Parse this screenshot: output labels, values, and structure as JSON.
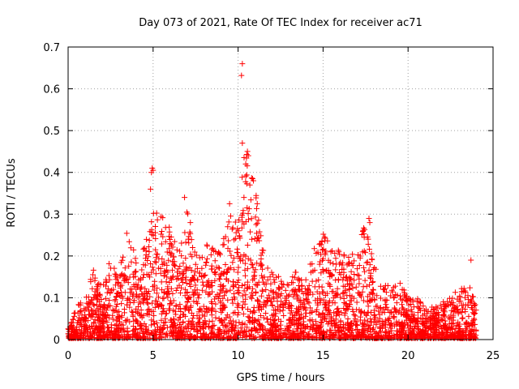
{
  "chart_data": {
    "type": "scatter",
    "title": "Day 073 of 2021, Rate Of TEC Index for receiver ac71",
    "xlabel": "GPS time / hours",
    "ylabel": "ROTI / TECUs",
    "xlim": [
      0,
      25
    ],
    "ylim": [
      0,
      0.7
    ],
    "xticks": [
      0,
      5,
      10,
      15,
      20,
      25
    ],
    "yticks": [
      0,
      0.1,
      0.2,
      0.3,
      0.4,
      0.5,
      0.6,
      0.7
    ],
    "x_tick_labels": [
      "0",
      "5",
      "10",
      "15",
      "20",
      "25"
    ],
    "y_tick_labels": [
      "0",
      "0.1",
      "0.2",
      "0.3",
      "0.4",
      "0.5",
      "0.6",
      "0.7"
    ],
    "grid": true,
    "legend": "none",
    "marker": "+",
    "color": "#ff0000",
    "envelope": {
      "x": [
        0,
        0.5,
        1,
        1.5,
        2,
        2.5,
        3,
        3.5,
        4,
        4.5,
        4.8,
        5,
        5.5,
        6,
        6.5,
        7,
        7.5,
        8,
        8.5,
        9,
        9.5,
        10,
        10.3,
        10.5,
        11,
        11.5,
        12,
        12.5,
        13,
        13.5,
        14,
        14.5,
        15,
        15.5,
        16,
        16.5,
        17,
        17.5,
        18,
        18.5,
        19,
        19.5,
        20,
        20.5,
        21,
        21.5,
        22,
        22.5,
        23,
        23.5,
        24
      ],
      "y": [
        0.03,
        0.08,
        0.1,
        0.18,
        0.12,
        0.2,
        0.17,
        0.27,
        0.2,
        0.22,
        0.28,
        0.32,
        0.3,
        0.27,
        0.22,
        0.34,
        0.2,
        0.24,
        0.22,
        0.22,
        0.3,
        0.3,
        0.47,
        0.45,
        0.38,
        0.22,
        0.17,
        0.15,
        0.14,
        0.17,
        0.16,
        0.22,
        0.26,
        0.22,
        0.22,
        0.2,
        0.22,
        0.29,
        0.18,
        0.13,
        0.13,
        0.14,
        0.1,
        0.1,
        0.08,
        0.08,
        0.09,
        0.1,
        0.13,
        0.15,
        0.08
      ]
    },
    "outliers": [
      {
        "x": 4.85,
        "y": 0.36
      },
      {
        "x": 4.9,
        "y": 0.4
      },
      {
        "x": 4.95,
        "y": 0.41
      },
      {
        "x": 5.0,
        "y": 0.405
      },
      {
        "x": 6.85,
        "y": 0.34
      },
      {
        "x": 9.5,
        "y": 0.325
      },
      {
        "x": 10.25,
        "y": 0.66
      },
      {
        "x": 10.2,
        "y": 0.632
      },
      {
        "x": 10.25,
        "y": 0.47
      },
      {
        "x": 10.55,
        "y": 0.45
      },
      {
        "x": 10.6,
        "y": 0.44
      },
      {
        "x": 10.45,
        "y": 0.42
      },
      {
        "x": 10.85,
        "y": 0.385
      },
      {
        "x": 10.9,
        "y": 0.38
      },
      {
        "x": 17.7,
        "y": 0.29
      },
      {
        "x": 17.75,
        "y": 0.28
      },
      {
        "x": 23.7,
        "y": 0.19
      }
    ]
  }
}
